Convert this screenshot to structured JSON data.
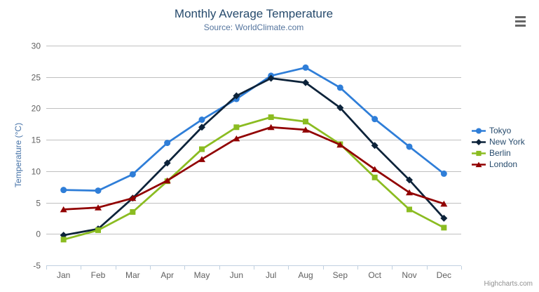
{
  "chart": {
    "credits": "Highcharts.com",
    "menu_icon": "hamburger-icon"
  },
  "chart_data": {
    "type": "line",
    "title": "Monthly Average Temperature",
    "subtitle": "Source: WorldClimate.com",
    "xlabel": "",
    "ylabel": "Temperature (°C)",
    "ylim": [
      -5,
      30
    ],
    "ytick_interval": 5,
    "grid": true,
    "legend_position": "right",
    "categories": [
      "Jan",
      "Feb",
      "Mar",
      "Apr",
      "May",
      "Jun",
      "Jul",
      "Aug",
      "Sep",
      "Oct",
      "Nov",
      "Dec"
    ],
    "series": [
      {
        "name": "Tokyo",
        "color": "#2f7ed8",
        "marker": "circle",
        "values": [
          7.0,
          6.9,
          9.5,
          14.5,
          18.2,
          21.5,
          25.2,
          26.5,
          23.3,
          18.3,
          13.9,
          9.6
        ]
      },
      {
        "name": "New York",
        "color": "#0d233a",
        "marker": "diamond",
        "values": [
          -0.2,
          0.8,
          5.7,
          11.3,
          17.0,
          22.0,
          24.8,
          24.1,
          20.1,
          14.1,
          8.6,
          2.5
        ]
      },
      {
        "name": "Berlin",
        "color": "#8bbc21",
        "marker": "square",
        "values": [
          -0.9,
          0.6,
          3.5,
          8.4,
          13.5,
          17.0,
          18.6,
          17.9,
          14.3,
          9.0,
          3.9,
          1.0
        ]
      },
      {
        "name": "London",
        "color": "#910000",
        "marker": "triangle",
        "values": [
          3.9,
          4.2,
          5.7,
          8.5,
          11.9,
          15.2,
          17.0,
          16.6,
          14.2,
          10.3,
          6.6,
          4.8
        ]
      }
    ],
    "axis_colors": {
      "gridline": "#c0c0c0",
      "axisline": "#c0d0e0",
      "tick": "#c0d0e0"
    }
  }
}
